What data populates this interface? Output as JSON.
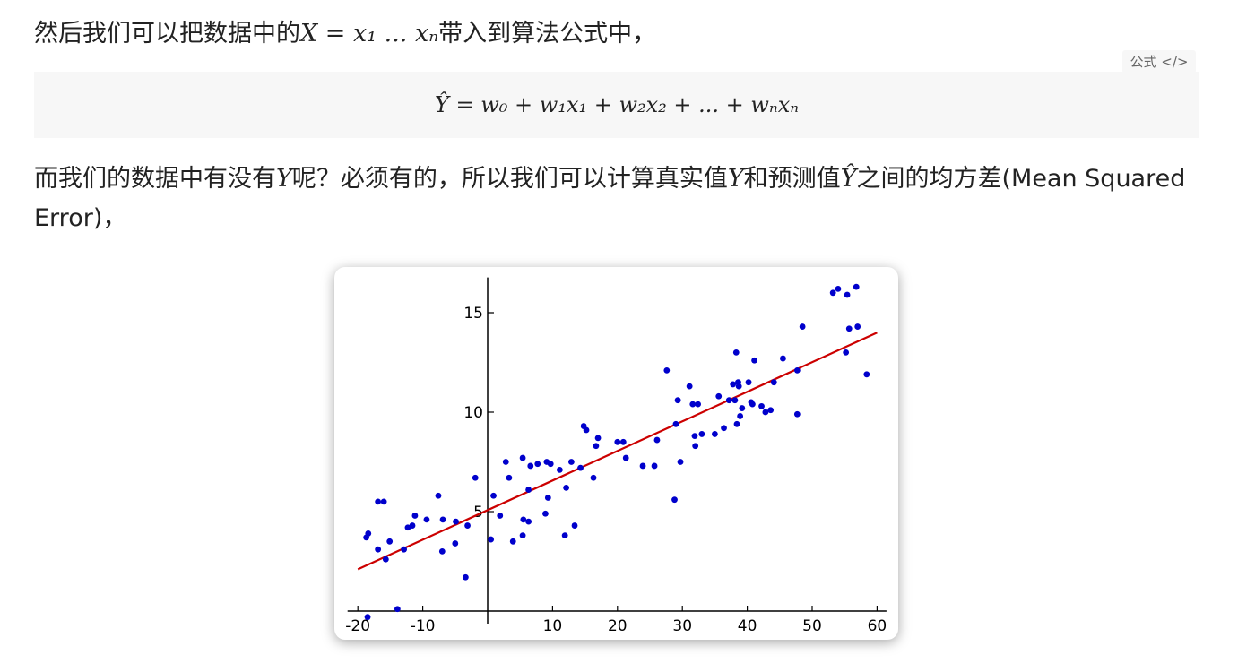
{
  "paragraph1": {
    "before": "然后我们可以把数据中的",
    "math": "X = x₁ ... xₙ",
    "after": "带入到算法公式中，"
  },
  "formula": {
    "tag_label": "公式",
    "tag_icon": "code-icon",
    "expression": "Ŷ = w₀ + w₁x₁ + w₂x₂ + ... + wₙxₙ"
  },
  "paragraph2": {
    "part1": "而我们的数据中有没有",
    "y1": "Y",
    "part2": "呢？必须有的，所以我们可以计算真实值",
    "y2": "Y",
    "part3": "和预测值",
    "yhat": "Ŷ",
    "part4": "之间的均方差(Mean Squared Error)，"
  },
  "chart_data": {
    "type": "scatter",
    "title": "",
    "xlabel": "",
    "ylabel": "",
    "xlim": [
      -22,
      62
    ],
    "ylim": [
      0,
      17
    ],
    "x_ticks": [
      -20,
      -10,
      10,
      20,
      30,
      40,
      50,
      60
    ],
    "y_ticks": [
      5,
      10,
      15
    ],
    "point_color": "#0000cc",
    "line_color": "#cc0000",
    "regression_line": {
      "x": [
        -20,
        60
      ],
      "y": [
        2.1,
        14.0
      ]
    },
    "points": [
      [
        -18.7,
        3.7
      ],
      [
        -18.4,
        3.9
      ],
      [
        -18.5,
        -0.3
      ],
      [
        -16.9,
        5.5
      ],
      [
        -16.0,
        5.5
      ],
      [
        -16.9,
        3.1
      ],
      [
        -15.7,
        2.6
      ],
      [
        -15.1,
        3.5
      ],
      [
        -13.9,
        0.1
      ],
      [
        -12.9,
        3.1
      ],
      [
        -12.3,
        4.2
      ],
      [
        -11.6,
        4.3
      ],
      [
        -11.2,
        4.8
      ],
      [
        -9.4,
        4.6
      ],
      [
        -7.6,
        5.8
      ],
      [
        -7.0,
        3.0
      ],
      [
        -6.9,
        4.6
      ],
      [
        -5.0,
        3.4
      ],
      [
        -4.9,
        4.5
      ],
      [
        -3.4,
        1.7
      ],
      [
        -3.1,
        4.3
      ],
      [
        -1.9,
        6.7
      ],
      [
        0.5,
        3.6
      ],
      [
        0.9,
        5.8
      ],
      [
        1.9,
        4.8
      ],
      [
        2.8,
        7.5
      ],
      [
        3.3,
        6.7
      ],
      [
        3.9,
        3.5
      ],
      [
        5.4,
        3.8
      ],
      [
        5.5,
        4.6
      ],
      [
        5.4,
        7.7
      ],
      [
        6.3,
        4.5
      ],
      [
        6.3,
        6.1
      ],
      [
        6.6,
        7.3
      ],
      [
        7.7,
        7.4
      ],
      [
        8.9,
        4.9
      ],
      [
        9.1,
        7.5
      ],
      [
        9.3,
        5.7
      ],
      [
        9.7,
        7.4
      ],
      [
        11.1,
        7.1
      ],
      [
        11.9,
        3.8
      ],
      [
        12.1,
        6.2
      ],
      [
        12.9,
        7.5
      ],
      [
        13.4,
        4.3
      ],
      [
        14.3,
        7.2
      ],
      [
        14.8,
        9.3
      ],
      [
        15.2,
        9.1
      ],
      [
        16.3,
        6.7
      ],
      [
        16.7,
        8.3
      ],
      [
        17.0,
        8.7
      ],
      [
        20.0,
        8.5
      ],
      [
        20.9,
        8.5
      ],
      [
        21.3,
        7.7
      ],
      [
        23.9,
        7.3
      ],
      [
        25.7,
        7.3
      ],
      [
        26.1,
        8.6
      ],
      [
        27.6,
        12.1
      ],
      [
        28.8,
        5.6
      ],
      [
        29.0,
        9.4
      ],
      [
        29.7,
        7.5
      ],
      [
        29.3,
        10.6
      ],
      [
        31.1,
        11.3
      ],
      [
        31.6,
        10.4
      ],
      [
        31.9,
        8.8
      ],
      [
        32.0,
        8.3
      ],
      [
        32.4,
        10.4
      ],
      [
        33.0,
        8.9
      ],
      [
        35.0,
        8.9
      ],
      [
        35.6,
        10.8
      ],
      [
        36.4,
        9.2
      ],
      [
        37.2,
        10.6
      ],
      [
        37.8,
        11.4
      ],
      [
        38.1,
        10.6
      ],
      [
        38.3,
        13.0
      ],
      [
        38.4,
        9.4
      ],
      [
        38.6,
        11.5
      ],
      [
        38.7,
        11.3
      ],
      [
        38.9,
        9.8
      ],
      [
        39.2,
        10.2
      ],
      [
        40.2,
        11.5
      ],
      [
        40.6,
        10.5
      ],
      [
        40.8,
        10.4
      ],
      [
        41.1,
        12.6
      ],
      [
        42.2,
        10.3
      ],
      [
        42.8,
        10.0
      ],
      [
        43.6,
        10.1
      ],
      [
        44.1,
        11.5
      ],
      [
        45.5,
        12.7
      ],
      [
        47.7,
        12.1
      ],
      [
        47.7,
        9.9
      ],
      [
        48.5,
        14.3
      ],
      [
        53.2,
        16.0
      ],
      [
        54.0,
        16.2
      ],
      [
        55.2,
        13.0
      ],
      [
        55.4,
        15.9
      ],
      [
        55.7,
        14.2
      ],
      [
        56.8,
        16.3
      ],
      [
        57.0,
        14.3
      ],
      [
        58.4,
        11.9
      ]
    ]
  }
}
